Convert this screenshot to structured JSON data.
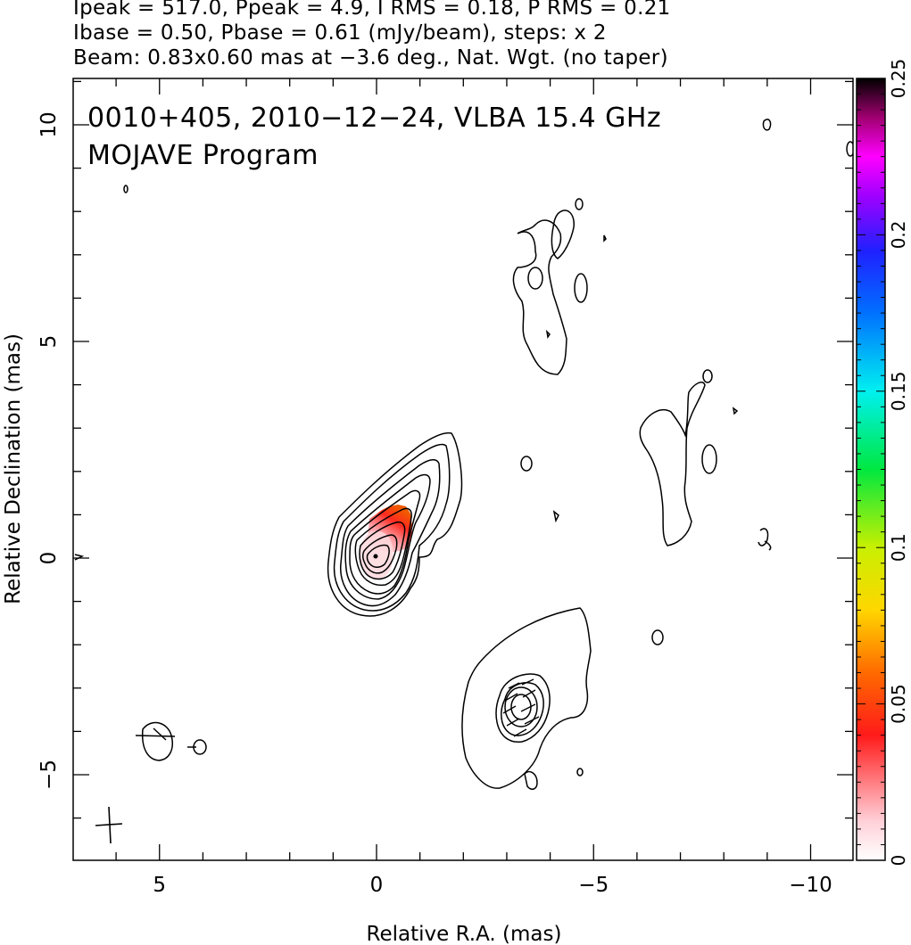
{
  "header": {
    "line1": "Ipeak = 517.0, Ppeak = 4.9, I RMS = 0.18, P RMS = 0.21",
    "line2": "Ibase = 0.50, Pbase = 0.61 (mJy/beam), steps: x 2",
    "line3": "Beam: 0.83x0.60 mas at −3.6 deg., Nat. Wgt. (no taper)"
  },
  "panel": {
    "title": "0010+405, 2010−12−24, VLBA 15.4 GHz",
    "subtitle": "MOJAVE Program"
  },
  "chart_data": {
    "type": "heatmap",
    "xlabel": "Relative R.A. (mas)",
    "ylabel": "Relative Declination (mas)",
    "xlim": [
      7,
      -11.5
    ],
    "ylim": [
      -7,
      11
    ],
    "xticks": [
      5,
      0,
      -5,
      -10
    ],
    "xtick_labels": [
      "5",
      "0",
      "−5",
      "−10"
    ],
    "yticks": [
      10,
      5,
      0,
      -5
    ],
    "ytick_labels": [
      "10",
      "5",
      "0",
      "−5"
    ],
    "colorbar": {
      "range": [
        0,
        0.25
      ],
      "ticks": [
        0,
        0.05,
        0.1,
        0.15,
        0.2,
        0.25
      ],
      "tick_labels": [
        "0",
        "0.05",
        "0.1",
        "0.15",
        "0.2",
        "0.25"
      ]
    },
    "core": {
      "x": 0,
      "y": 0,
      "contour_levels": 9
    },
    "polarization_patch": {
      "x_range": [
        0.2,
        -0.8
      ],
      "y_range": [
        0.1,
        1.3
      ]
    },
    "beam": {
      "x": 6.2,
      "y": -6.2,
      "major": 0.83,
      "minor": 0.6,
      "pa_deg": -3.6
    }
  }
}
